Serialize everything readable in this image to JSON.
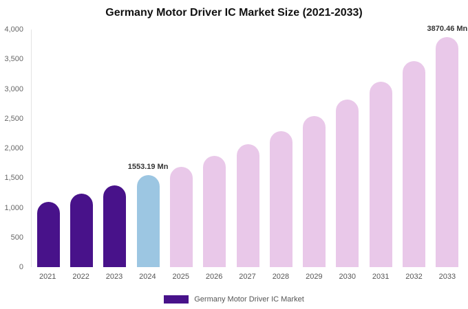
{
  "chart_data": {
    "type": "bar",
    "title": "Germany Motor Driver IC Market Size (2021-2033)",
    "unit": "Mn",
    "categories": [
      "2021",
      "2022",
      "2023",
      "2024",
      "2025",
      "2026",
      "2027",
      "2028",
      "2029",
      "2030",
      "2031",
      "2032",
      "2033"
    ],
    "values": [
      1100,
      1240,
      1380,
      1553.19,
      1690,
      1870,
      2070,
      2290,
      2540,
      2820,
      3120,
      3470,
      3870.46
    ],
    "bar_colors": [
      "#48128a",
      "#48128a",
      "#48128a",
      "#9cc6e2",
      "#e9c8e9",
      "#e9c8e9",
      "#e9c8e9",
      "#e9c8e9",
      "#e9c8e9",
      "#e9c8e9",
      "#e9c8e9",
      "#e9c8e9",
      "#e9c8e9"
    ],
    "point_labels": [
      "",
      "",
      "",
      "1553.19 Mn",
      "",
      "",
      "",
      "",
      "",
      "",
      "",
      "",
      "3870.46 Mn"
    ],
    "ylim": [
      0,
      4000
    ],
    "yticks": [
      "4,000",
      "3,500",
      "3,000",
      "2,500",
      "2,000",
      "1,500",
      "1,000",
      "500",
      "0"
    ],
    "grid": false,
    "legend": {
      "position": "bottom",
      "label": "Germany Motor Driver IC Market",
      "color": "#48128a"
    }
  }
}
